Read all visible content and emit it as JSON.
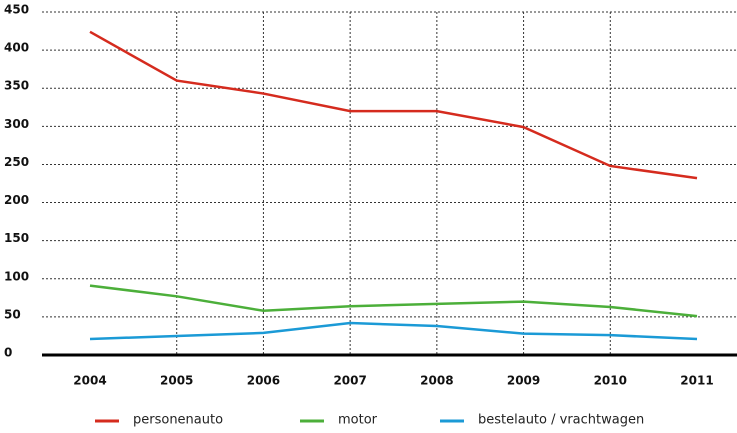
{
  "chart_data": {
    "type": "line",
    "categories": [
      "2004",
      "2005",
      "2006",
      "2007",
      "2008",
      "2009",
      "2010",
      "2011"
    ],
    "series": [
      {
        "name": "personenauto",
        "color": "#d52b1e",
        "values": [
          424,
          360,
          343,
          320,
          320,
          299,
          248,
          232
        ]
      },
      {
        "name": "motor",
        "color": "#4caf3a",
        "values": [
          91,
          77,
          58,
          64,
          67,
          70,
          63,
          51
        ]
      },
      {
        "name": "bestelauto / vrachtwagen",
        "color": "#1b9ad6",
        "values": [
          21,
          25,
          29,
          42,
          38,
          28,
          26,
          21
        ]
      }
    ],
    "ylim": [
      0,
      450
    ],
    "yticks": [
      0,
      50,
      100,
      150,
      200,
      250,
      300,
      350,
      400,
      450
    ],
    "grid": true
  }
}
